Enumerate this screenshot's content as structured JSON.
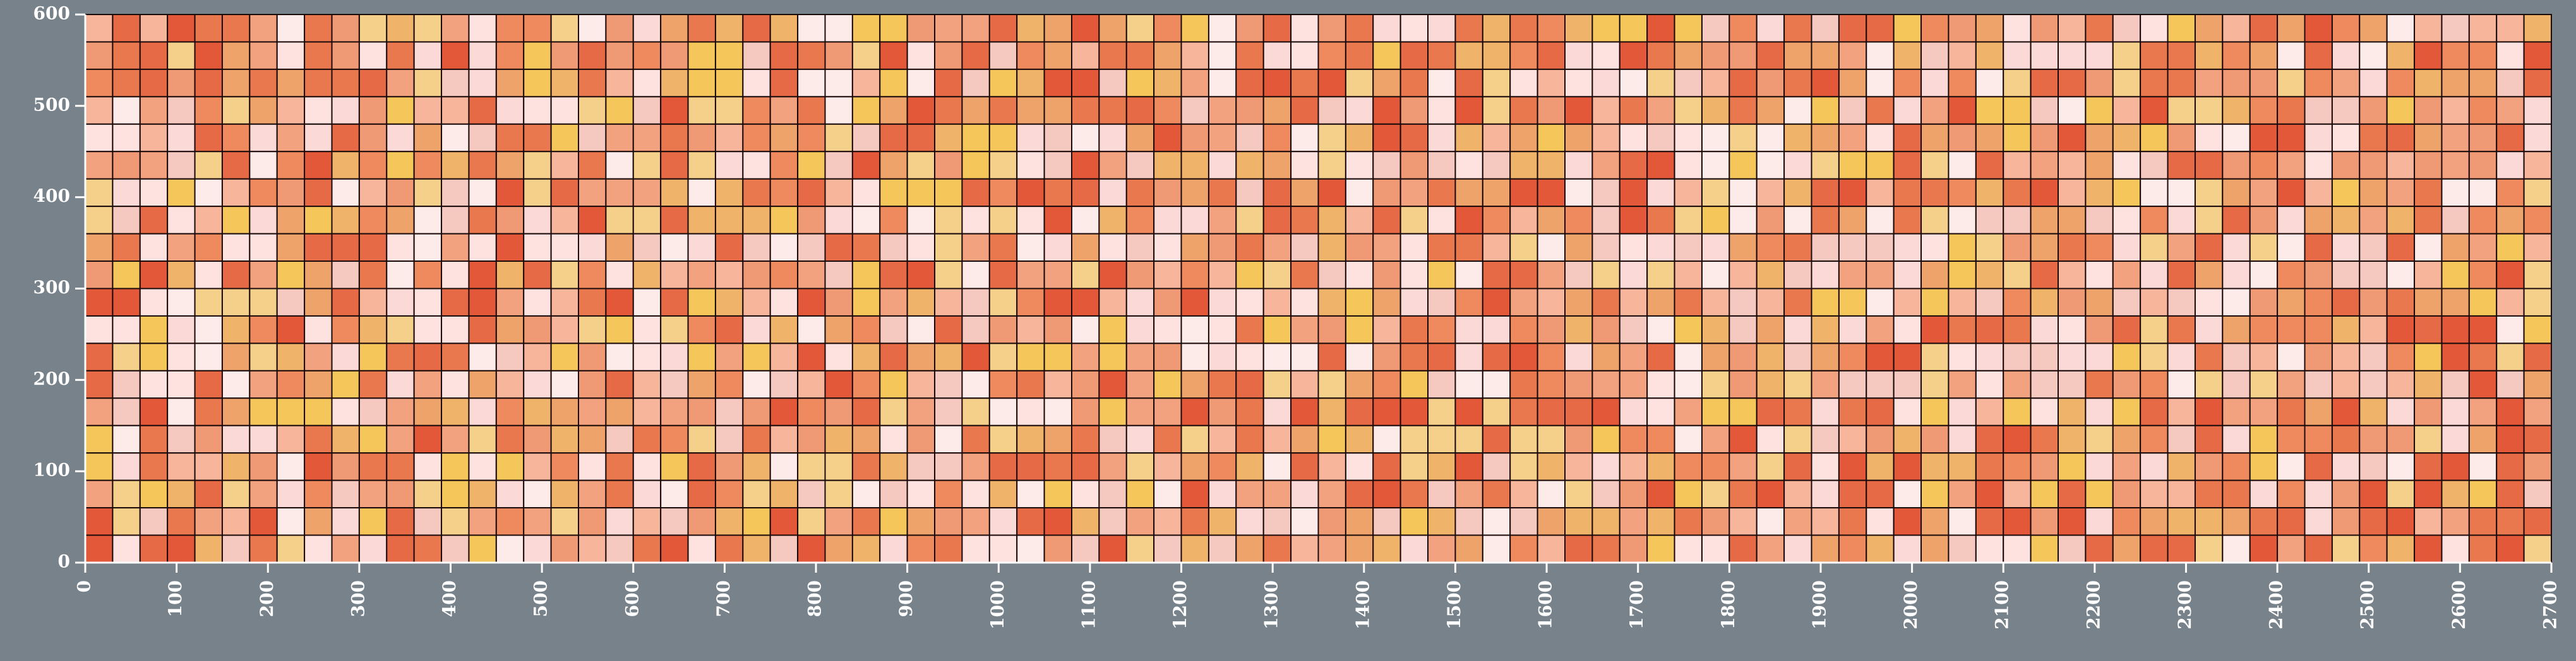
{
  "chart_data": {
    "type": "image",
    "xlim": [
      0,
      2700
    ],
    "ylim": [
      0,
      600
    ],
    "xticks": [
      0,
      100,
      200,
      300,
      400,
      500,
      600,
      700,
      800,
      900,
      1000,
      1100,
      1200,
      1300,
      1400,
      1500,
      1600,
      1700,
      1800,
      1900,
      2000,
      2100,
      2200,
      2300,
      2400,
      2500,
      2600,
      2700
    ],
    "yticks": [
      0,
      100,
      200,
      300,
      400,
      500,
      600
    ]
  }
}
